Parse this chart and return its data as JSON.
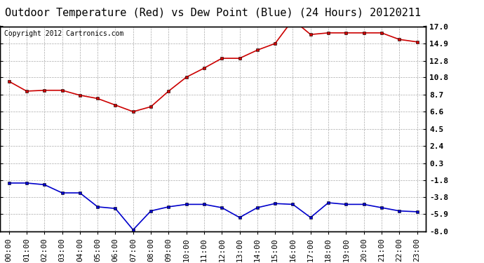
{
  "title": "Outdoor Temperature (Red) vs Dew Point (Blue) (24 Hours) 20120211",
  "copyright_text": "Copyright 2012 Cartronics.com",
  "x_labels": [
    "00:00",
    "01:00",
    "02:00",
    "03:00",
    "04:00",
    "05:00",
    "06:00",
    "07:00",
    "08:00",
    "09:00",
    "10:00",
    "11:00",
    "12:00",
    "13:00",
    "14:00",
    "15:00",
    "16:00",
    "17:00",
    "18:00",
    "19:00",
    "20:00",
    "21:00",
    "22:00",
    "23:00"
  ],
  "temp_data": [
    10.3,
    9.1,
    9.2,
    9.2,
    8.6,
    8.2,
    7.4,
    6.6,
    7.2,
    9.1,
    10.8,
    11.9,
    13.1,
    13.1,
    14.1,
    14.9,
    17.8,
    16.0,
    16.2,
    16.2,
    16.2,
    16.2,
    15.4,
    15.1
  ],
  "dew_data": [
    -2.1,
    -2.1,
    -2.3,
    -3.3,
    -3.3,
    -5.0,
    -5.2,
    -7.8,
    -5.5,
    -5.0,
    -4.7,
    -4.7,
    -5.1,
    -6.3,
    -5.1,
    -4.6,
    -4.7,
    -6.3,
    -4.5,
    -4.7,
    -4.7,
    -5.1,
    -5.5,
    -5.6
  ],
  "temp_color": "#cc0000",
  "dew_color": "#0000cc",
  "marker": "s",
  "markersize": 3,
  "linewidth": 1.2,
  "ylim": [
    -8.0,
    17.0
  ],
  "yticks": [
    17.0,
    14.9,
    12.8,
    10.8,
    8.7,
    6.6,
    4.5,
    2.4,
    0.3,
    -1.8,
    -3.8,
    -5.9,
    -8.0
  ],
  "ytick_labels": [
    "17.0",
    "14.9",
    "12.8",
    "10.8",
    "8.7",
    "6.6",
    "4.5",
    "2.4",
    "0.3",
    "-1.8",
    "-3.8",
    "-5.9",
    "-8.0"
  ],
  "grid_color": "#aaaaaa",
  "grid_style": "--",
  "bg_color": "#ffffff",
  "title_fontsize": 11,
  "tick_fontsize": 8,
  "copyright_fontsize": 7
}
